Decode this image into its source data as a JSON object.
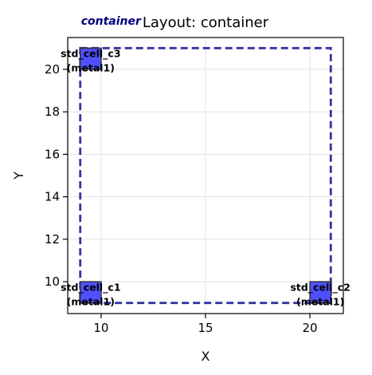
{
  "chart_data": {
    "type": "scatter",
    "title": "Layout: container",
    "xlabel": "X",
    "ylabel": "Y",
    "xlim": [
      8.4,
      21.6
    ],
    "ylim": [
      8.5,
      21.5
    ],
    "xticks": [
      10,
      15,
      20
    ],
    "yticks": [
      10,
      12,
      14,
      16,
      18,
      20
    ],
    "grid": true,
    "container": {
      "label": "container",
      "x0": 9,
      "y0": 9,
      "x1": 21,
      "y1": 21,
      "color": "#00008b"
    },
    "cells": [
      {
        "name": "std_cell_c1",
        "layer": "(metal1)",
        "x0": 9,
        "y0": 9,
        "x1": 10,
        "y1": 10
      },
      {
        "name": "std_cell_c2",
        "layer": "(metal1)",
        "x0": 20,
        "y0": 9,
        "x1": 21,
        "y1": 10
      },
      {
        "name": "std_cell_c3",
        "layer": "(metal1)",
        "x0": 9,
        "y0": 20,
        "x1": 10,
        "y1": 21
      }
    ],
    "cell_fill": "#5050ff",
    "cell_stroke": "#333333"
  }
}
